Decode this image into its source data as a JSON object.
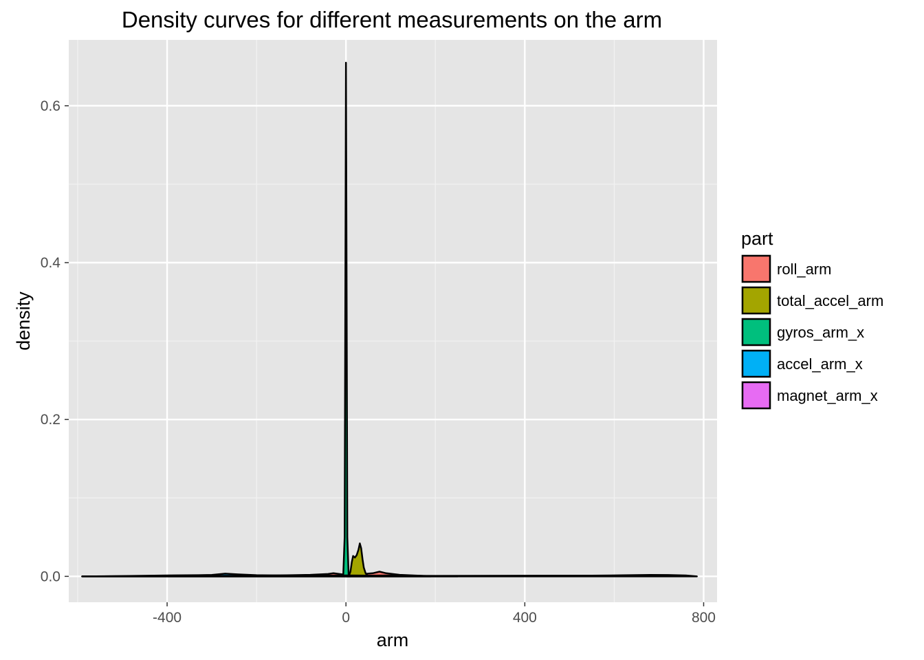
{
  "chart_data": {
    "type": "area",
    "title": "Density curves for different measurements on the arm",
    "xlabel": "arm",
    "ylabel": "density",
    "xlim": [
      -620,
      830
    ],
    "ylim": [
      -0.033,
      0.684
    ],
    "x_ticks": [
      -400,
      0,
      400,
      800
    ],
    "x_tick_labels": [
      "-400",
      "0",
      "400",
      "800"
    ],
    "y_ticks": [
      0.0,
      0.2,
      0.4,
      0.6
    ],
    "y_tick_labels": [
      "0.0",
      "0.2",
      "0.4",
      "0.6"
    ],
    "grid": true,
    "legend": {
      "title": "part",
      "position": "right"
    },
    "series": [
      {
        "name": "roll_arm",
        "color": "#F8766D",
        "x": [
          -590,
          -300,
          -220,
          -180,
          -120,
          -80,
          -40,
          -28,
          -15,
          0,
          20,
          40,
          60,
          75,
          90,
          120,
          160,
          190
        ],
        "y": [
          0,
          0,
          0,
          0.001,
          0.0015,
          0.002,
          0.003,
          0.004,
          0.003,
          0.002,
          0.003,
          0.003,
          0.004,
          0.006,
          0.004,
          0.002,
          0.001,
          0
        ]
      },
      {
        "name": "total_accel_arm",
        "color": "#A3A500",
        "x": [
          0,
          6,
          10,
          13,
          16,
          20,
          24,
          28,
          31,
          34,
          37,
          40,
          44,
          48,
          52
        ],
        "y": [
          0,
          0,
          0.006,
          0.018,
          0.026,
          0.024,
          0.027,
          0.034,
          0.042,
          0.036,
          0.022,
          0.011,
          0.004,
          0.001,
          0
        ]
      },
      {
        "name": "gyros_arm_x",
        "color": "#00BF7D",
        "x": [
          -10,
          -6,
          -3,
          -1,
          0,
          1,
          3,
          6,
          10
        ],
        "y": [
          0,
          0.002,
          0.05,
          0.45,
          0.655,
          0.45,
          0.05,
          0.002,
          0
        ]
      },
      {
        "name": "accel_arm_x",
        "color": "#00B0F6",
        "x": [
          -590,
          -500,
          -400,
          -330,
          -300,
          -270,
          -240,
          -200,
          -150,
          -100,
          -50,
          0,
          50,
          100,
          150,
          200,
          250
        ],
        "y": [
          0,
          0.0004,
          0.0012,
          0.0015,
          0.0018,
          0.0035,
          0.0025,
          0.0015,
          0.0012,
          0.001,
          0.001,
          0.0012,
          0.001,
          0.0012,
          0.0008,
          0.0003,
          0
        ]
      },
      {
        "name": "magnet_arm_x",
        "color": "#E76BF3",
        "x": [
          -590,
          -400,
          -200,
          0,
          200,
          400,
          550,
          620,
          680,
          720,
          760,
          785
        ],
        "y": [
          0,
          0.0006,
          0.0008,
          0.0008,
          0.0007,
          0.0008,
          0.001,
          0.0014,
          0.0018,
          0.0017,
          0.0012,
          0
        ]
      }
    ]
  }
}
